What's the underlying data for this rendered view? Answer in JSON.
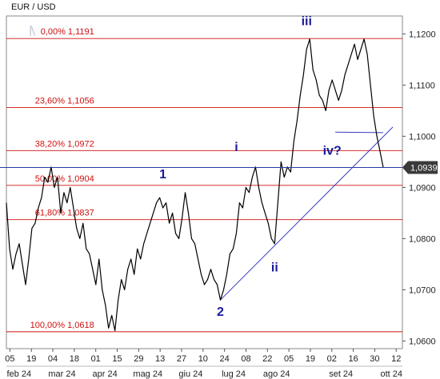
{
  "chart_data": {
    "type": "line",
    "title": "EUR / USD",
    "watermark": "MetaStock",
    "ylim": [
      1.0585,
      1.1235
    ],
    "y_ticks": [
      1.06,
      1.07,
      1.08,
      1.09,
      1.1,
      1.11,
      1.12
    ],
    "y_tick_labels": [
      "1,0600",
      "1,0700",
      "1,0800",
      "1,0900",
      "1,1000",
      "1,1100",
      "1,1200"
    ],
    "x_day_ticks": [
      "05",
      "19",
      "04",
      "18",
      "01",
      "15",
      "29",
      "13",
      "27",
      "10",
      "24",
      "08",
      "22",
      "05",
      "19",
      "02",
      "16",
      "30",
      "12"
    ],
    "x_month_ticks": [
      "feb 24",
      "mar 24",
      "apr 24",
      "mag 24",
      "giu 24",
      "lug 24",
      "ago 24",
      "set 24",
      "ott 24"
    ],
    "grid": false,
    "last_price": 1.0939,
    "last_price_label": "1,0939",
    "current_line_color": "#2a3aa8",
    "series_color": "#000000",
    "fib_color": "#d01010",
    "wave_color": "#1a1a9c",
    "fib_levels": [
      {
        "label": "0,00% 1,1191",
        "value": 1.1191
      },
      {
        "label": "23,60% 1,1056",
        "value": 1.1056
      },
      {
        "label": "38,20% 1,0972",
        "value": 1.0972
      },
      {
        "label": "50,00% 1,0904",
        "value": 1.0904
      },
      {
        "label": "61,80% 1,0837",
        "value": 1.0837
      },
      {
        "label": "100,00% 1,0618",
        "value": 1.0618
      }
    ],
    "wave_labels": [
      {
        "text": "iii",
        "x": 94,
        "y": 1.1217
      },
      {
        "text": "i",
        "x": 72,
        "y": 1.0971
      },
      {
        "text": "iv?",
        "x": 102,
        "y": 1.0964
      },
      {
        "text": "1",
        "x": 49,
        "y": 1.0918
      },
      {
        "text": "ii",
        "x": 84,
        "y": 1.0736
      },
      {
        "text": "2",
        "x": 67,
        "y": 1.0649
      }
    ],
    "trendline": [
      [
        67,
        1.068
      ],
      [
        121,
        1.1018
      ]
    ],
    "iv_line": [
      [
        103,
        1.1008
      ],
      [
        118,
        1.1007
      ]
    ],
    "series": [
      {
        "x": [
          0,
          1,
          2,
          3,
          4,
          5,
          6,
          7,
          8,
          9,
          10,
          11,
          12,
          13,
          14,
          15,
          16,
          17,
          18,
          19,
          20,
          21,
          22,
          23,
          24,
          25,
          26,
          27,
          28,
          29,
          30,
          31,
          32,
          33,
          34,
          35,
          36,
          37,
          38,
          39,
          40,
          41,
          42,
          43,
          44,
          45,
          46,
          47,
          48,
          49,
          50,
          51,
          52,
          53,
          54,
          55,
          56,
          57,
          58,
          59,
          60,
          61,
          62,
          63,
          64,
          65,
          66,
          67,
          68,
          69,
          70,
          71,
          72,
          73,
          74,
          75,
          76,
          77,
          78,
          79,
          80,
          81,
          82,
          83,
          84,
          85,
          86,
          87,
          88,
          89,
          90,
          91,
          92,
          93,
          94,
          95,
          96,
          97,
          98,
          99,
          100,
          101,
          102,
          103,
          104,
          105,
          106,
          107,
          108,
          109,
          110,
          111,
          112,
          113,
          114,
          115,
          116,
          117,
          118
        ],
        "values": [
          1.087,
          1.078,
          1.074,
          1.077,
          1.079,
          1.075,
          1.071,
          1.076,
          1.082,
          1.083,
          1.086,
          1.088,
          1.092,
          1.091,
          1.094,
          1.09,
          1.092,
          1.085,
          1.089,
          1.087,
          1.09,
          1.086,
          1.082,
          1.08,
          1.083,
          1.078,
          1.077,
          1.074,
          1.071,
          1.076,
          1.07,
          1.067,
          1.0625,
          1.065,
          1.062,
          1.068,
          1.072,
          1.07,
          1.074,
          1.076,
          1.073,
          1.078,
          1.076,
          1.079,
          1.081,
          1.083,
          1.085,
          1.087,
          1.088,
          1.086,
          1.087,
          1.083,
          1.085,
          1.081,
          1.08,
          1.084,
          1.089,
          1.085,
          1.08,
          1.079,
          1.076,
          1.073,
          1.071,
          1.072,
          1.074,
          1.072,
          1.071,
          1.068,
          1.07,
          1.073,
          1.077,
          1.078,
          1.081,
          1.087,
          1.086,
          1.09,
          1.089,
          1.092,
          1.094,
          1.09,
          1.087,
          1.085,
          1.083,
          1.08,
          1.079,
          1.087,
          1.095,
          1.092,
          1.094,
          1.093,
          1.099,
          1.103,
          1.108,
          1.112,
          1.117,
          1.119,
          1.113,
          1.111,
          1.108,
          1.107,
          1.105,
          1.109,
          1.111,
          1.109,
          1.107,
          1.109,
          1.112,
          1.114,
          1.116,
          1.118,
          1.115,
          1.117,
          1.119,
          1.116,
          1.11,
          1.104,
          1.1,
          1.097,
          1.0939
        ]
      }
    ]
  }
}
